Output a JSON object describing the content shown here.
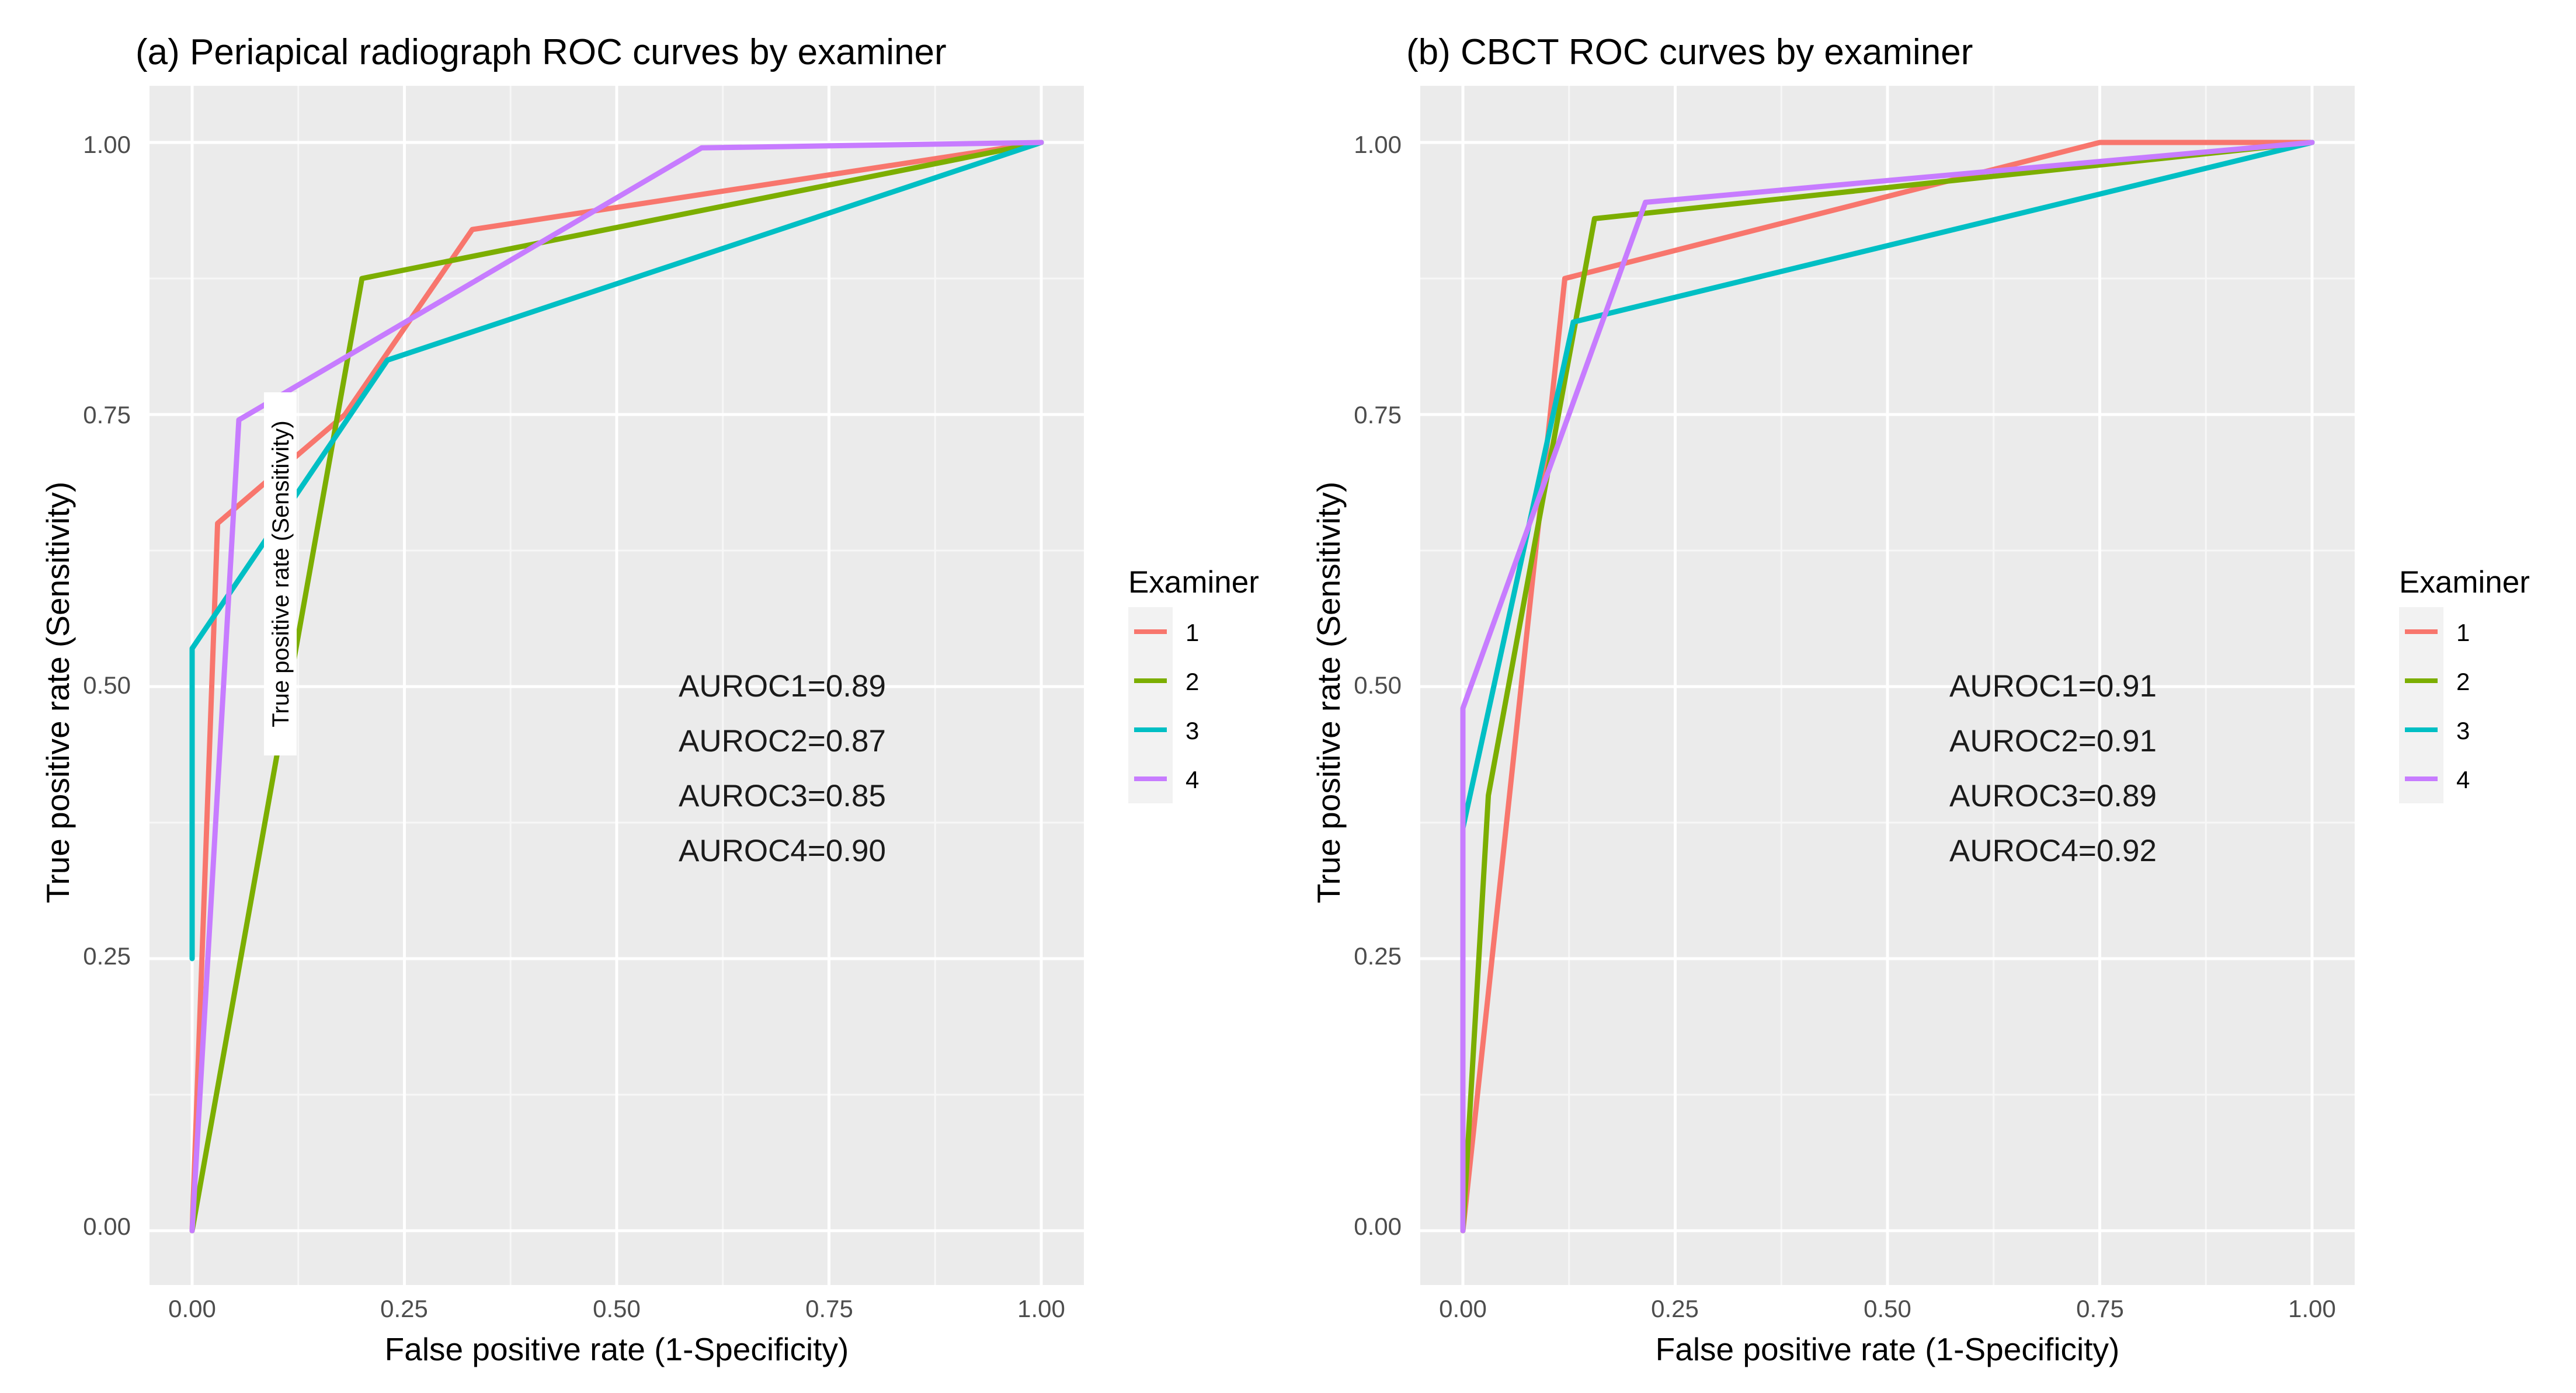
{
  "chart_data": [
    {
      "type": "line",
      "title": "(a) Periapical radiograph ROC curves by examiner",
      "xlabel": "False positive rate (1-Specificity)",
      "ylabel": "True positive rate (Sensitivity)",
      "xlim": [
        0,
        1
      ],
      "ylim": [
        0,
        1
      ],
      "x_ticks": [
        "0.00",
        "0.25",
        "0.50",
        "0.75",
        "1.00"
      ],
      "y_ticks": [
        "0.00",
        "0.25",
        "0.50",
        "0.75",
        "1.00"
      ],
      "grid": true,
      "legend": {
        "title": "Examiner",
        "placement": "right"
      },
      "overlay_label": "True positive rate (Sensitivity)",
      "series": [
        {
          "name": "1",
          "color": "#F8766D",
          "x": [
            0,
            0.03,
            0.18,
            0.33,
            1.0
          ],
          "y": [
            0,
            0.65,
            0.75,
            0.92,
            1.0
          ]
        },
        {
          "name": "2",
          "color": "#7CAE00",
          "x": [
            0,
            0.2,
            1.0
          ],
          "y": [
            0,
            0.875,
            1.0
          ]
        },
        {
          "name": "3",
          "color": "#00BFC4",
          "x": [
            0,
            0,
            0.23,
            1.0
          ],
          "y": [
            0.25,
            0.535,
            0.8,
            1.0
          ]
        },
        {
          "name": "4",
          "color": "#C77CFF",
          "x": [
            0,
            0.055,
            0.6,
            1.0
          ],
          "y": [
            0,
            0.745,
            0.995,
            1.0
          ]
        }
      ],
      "annotations": [
        "AUROC1=0.89",
        "AUROC2=0.87",
        "AUROC3=0.85",
        "AUROC4=0.90"
      ]
    },
    {
      "type": "line",
      "title": "(b) CBCT ROC curves by examiner",
      "xlabel": "False positive rate (1-Specificity)",
      "ylabel": "True positive rate (Sensitivity)",
      "xlim": [
        0,
        1
      ],
      "ylim": [
        0,
        1
      ],
      "x_ticks": [
        "0.00",
        "0.25",
        "0.50",
        "0.75",
        "1.00"
      ],
      "y_ticks": [
        "0.00",
        "0.25",
        "0.50",
        "0.75",
        "1.00"
      ],
      "grid": true,
      "legend": {
        "title": "Examiner",
        "placement": "right"
      },
      "series": [
        {
          "name": "1",
          "color": "#F8766D",
          "x": [
            0,
            0.12,
            0.75,
            1.0
          ],
          "y": [
            0,
            0.875,
            1.0,
            1.0
          ]
        },
        {
          "name": "2",
          "color": "#7CAE00",
          "x": [
            0,
            0.03,
            0.155,
            1.0
          ],
          "y": [
            0,
            0.4,
            0.93,
            1.0
          ]
        },
        {
          "name": "3",
          "color": "#00BFC4",
          "x": [
            0,
            0.13,
            1.0
          ],
          "y": [
            0.37,
            0.835,
            1.0
          ]
        },
        {
          "name": "4",
          "color": "#C77CFF",
          "x": [
            0,
            0,
            0.215,
            1.0
          ],
          "y": [
            0,
            0.48,
            0.945,
            1.0
          ]
        }
      ],
      "annotations": [
        "AUROC1=0.91",
        "AUROC2=0.91",
        "AUROC3=0.89",
        "AUROC4=0.92"
      ]
    }
  ]
}
